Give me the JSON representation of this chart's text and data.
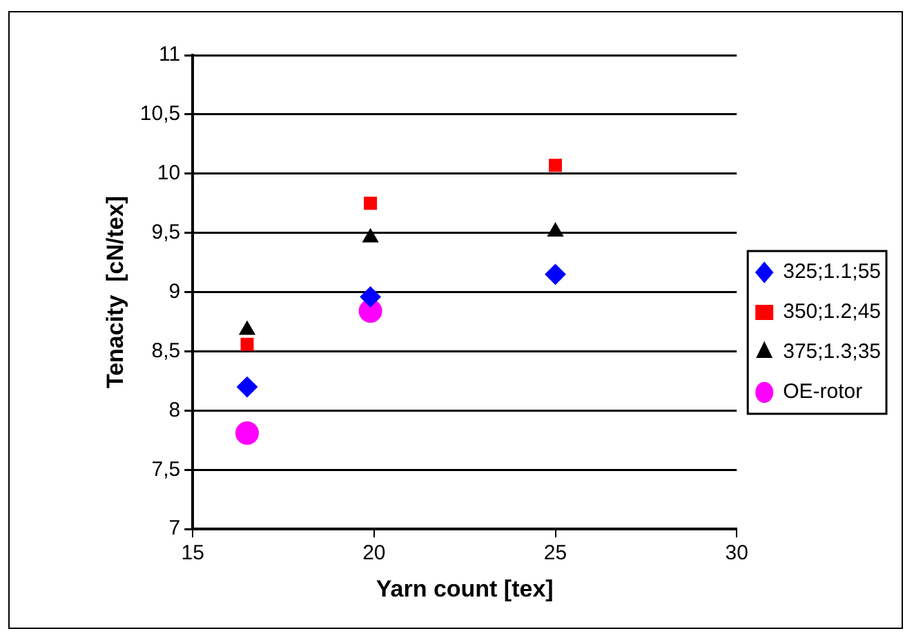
{
  "chart_data": {
    "type": "scatter",
    "xlabel": "Yarn count [tex]",
    "ylabel": "Tenacity  [cN/tex]",
    "xlim": [
      15,
      30
    ],
    "xticks": [
      15,
      20,
      25,
      30
    ],
    "ylim": [
      7,
      11
    ],
    "yticks": [
      7,
      {
        "value": 7.5,
        "label": "7,5"
      },
      8,
      {
        "value": 8.5,
        "label": "8,5"
      },
      9,
      {
        "value": 9.5,
        "label": "9,5"
      },
      10,
      {
        "value": 10.5,
        "label": "10,5"
      },
      11
    ],
    "grid": "y",
    "legend": "right",
    "series": [
      {
        "name": "325;1.1;55",
        "color": "#0000ff",
        "marker": "diamond",
        "x": [
          16.5,
          19.9,
          25
        ],
        "values": [
          8.2,
          8.96,
          9.15
        ]
      },
      {
        "name": "350;1.2;45",
        "color": "#ff0000",
        "marker": "square",
        "x": [
          16.5,
          19.9,
          25
        ],
        "values": [
          8.56,
          9.75,
          10.07
        ]
      },
      {
        "name": "375;1.3;35",
        "color": "#000000",
        "marker": "triangle",
        "x": [
          16.5,
          19.9,
          25
        ],
        "values": [
          8.68,
          9.46,
          9.51
        ]
      },
      {
        "name": "OE-rotor",
        "color": "#ff00ff",
        "marker": "circle",
        "x": [
          16.5,
          19.9
        ],
        "values": [
          7.81,
          8.84
        ]
      }
    ]
  }
}
